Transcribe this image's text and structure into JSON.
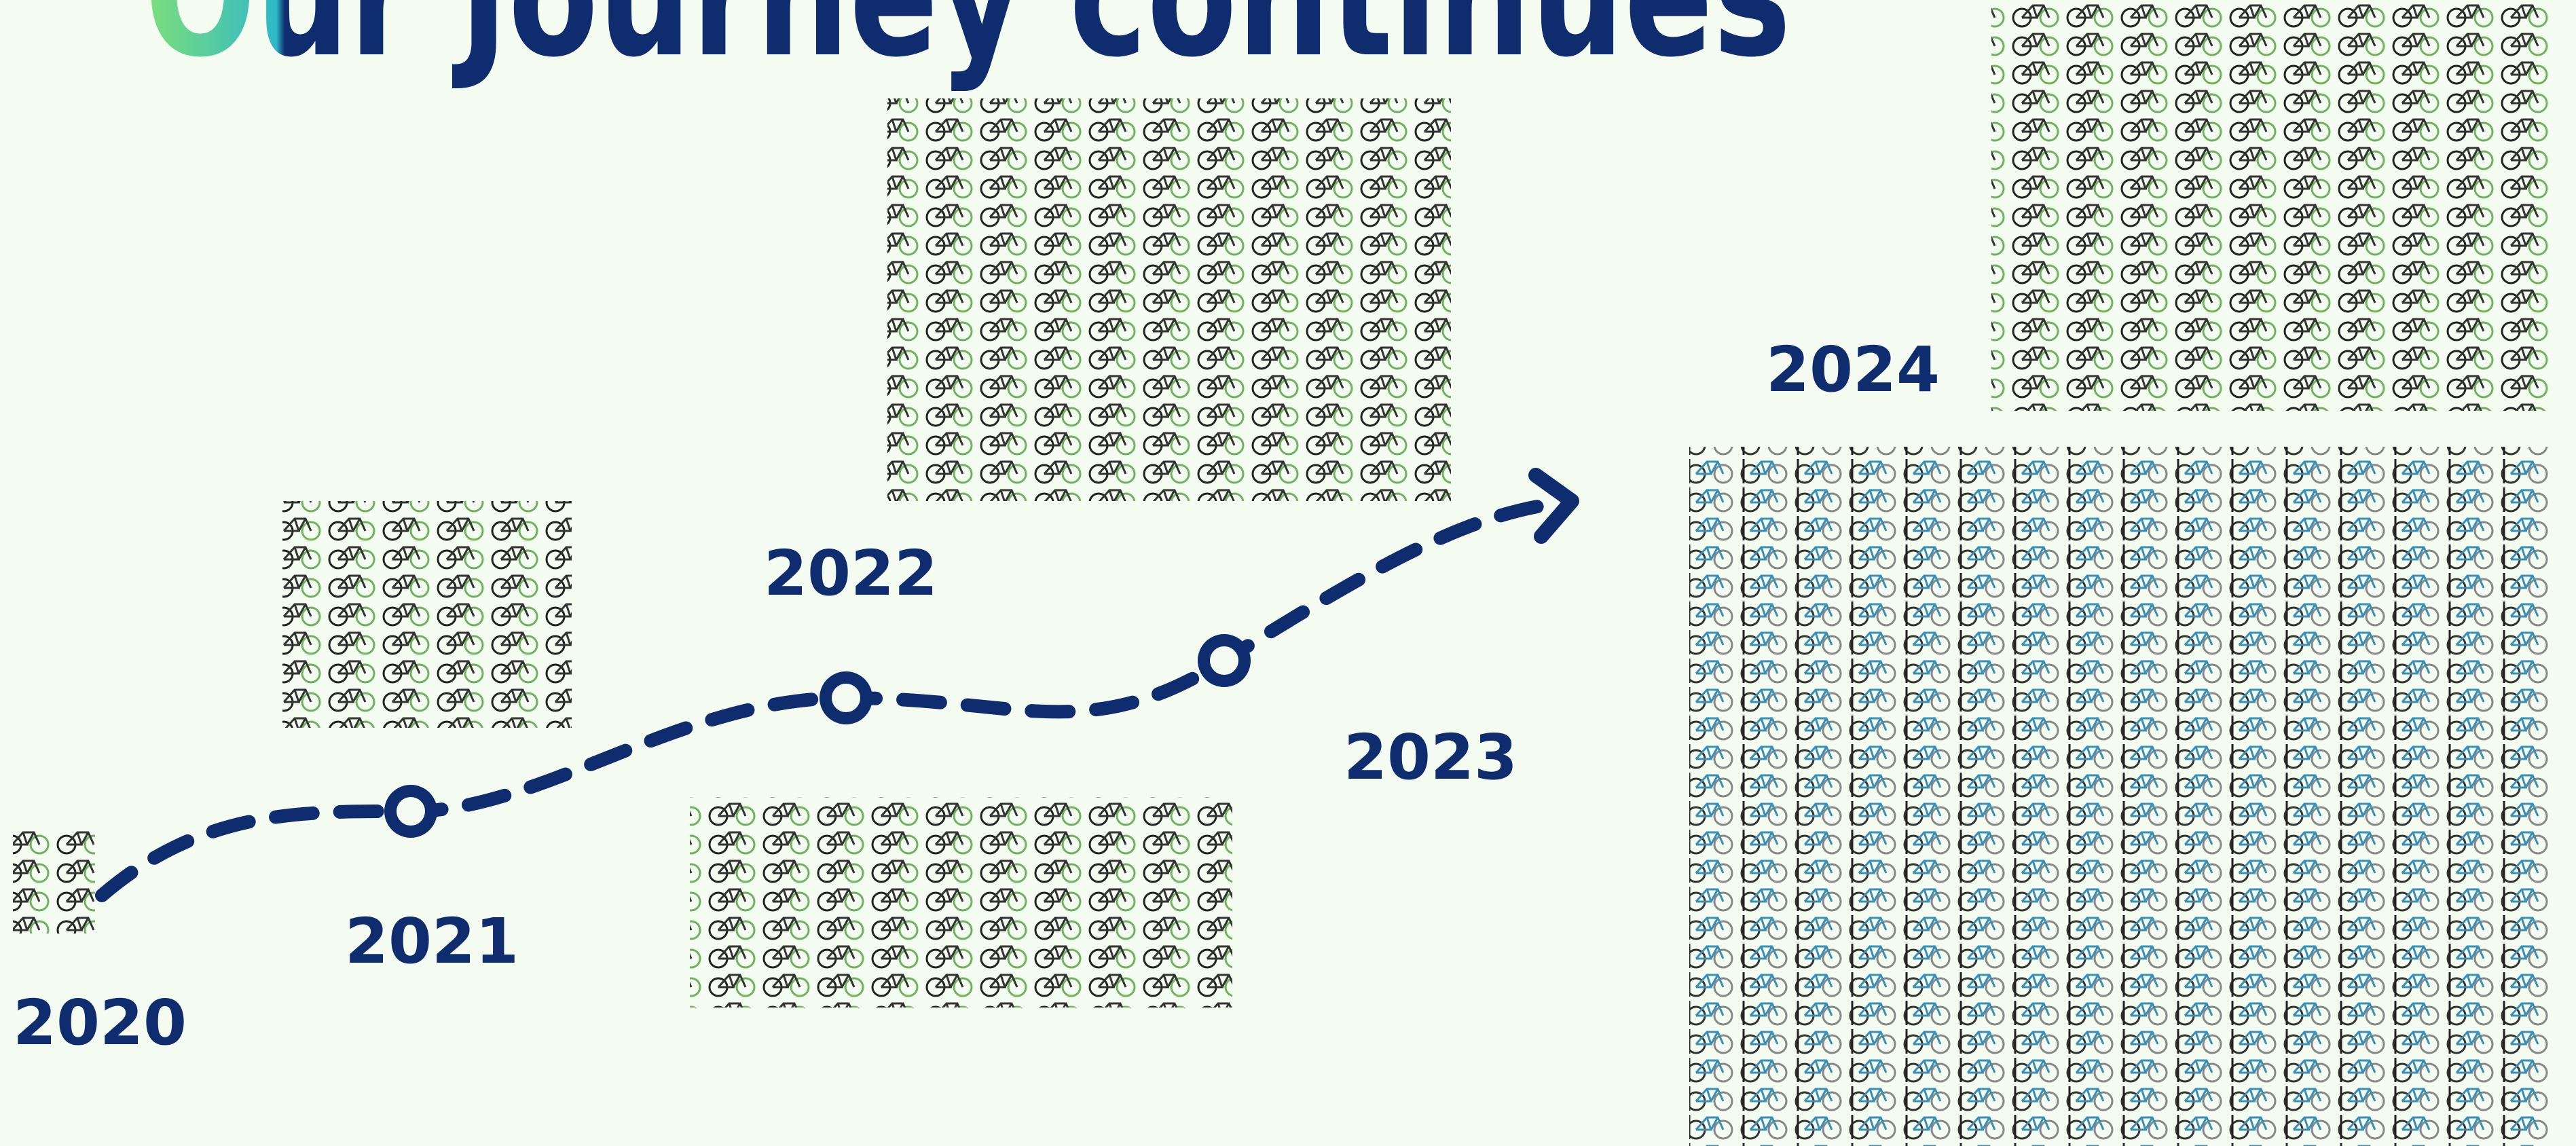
{
  "header": {
    "title": "Our Journey continues"
  },
  "timeline": {
    "years": [
      "2020",
      "2021",
      "2022",
      "2023",
      "2024"
    ]
  }
}
